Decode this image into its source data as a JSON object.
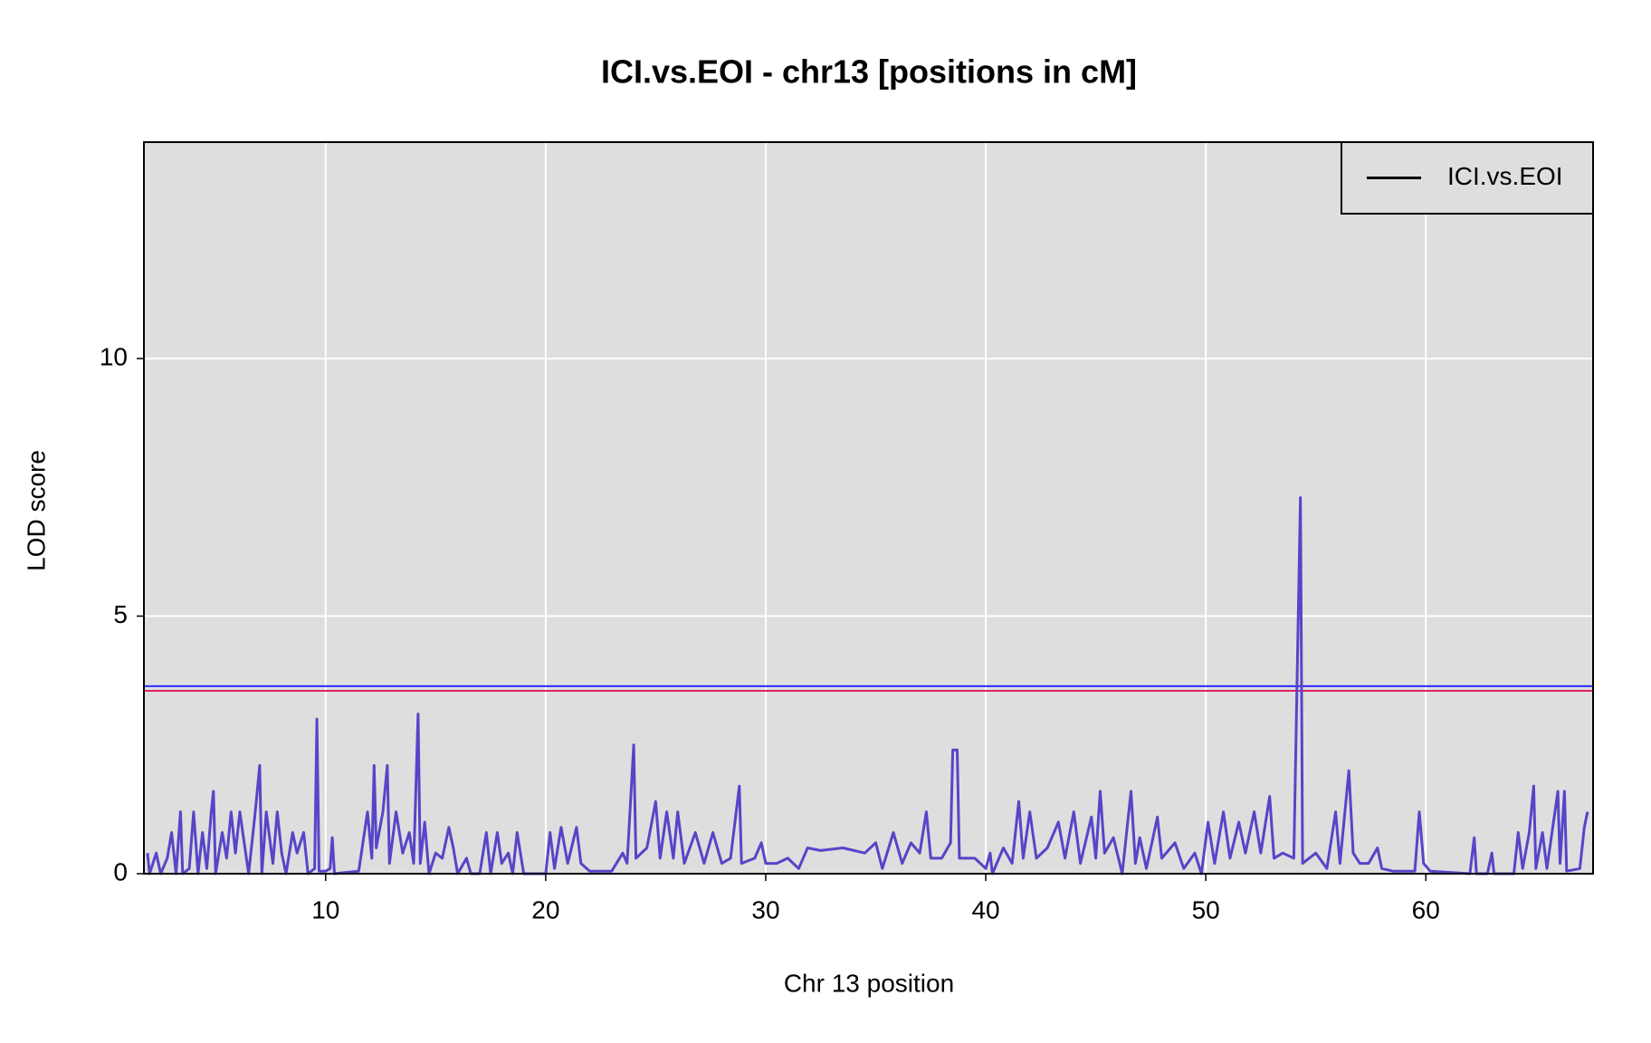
{
  "chart_data": {
    "type": "line",
    "title": "ICI.vs.EOI - chr13 [positions in cM]",
    "x_label": "Chr 13 position",
    "y_label": "LOD score",
    "xlim": [
      1.74,
      67.6
    ],
    "ylim": [
      0,
      14.2
    ],
    "xticks": [
      10,
      20,
      30,
      40,
      50,
      60
    ],
    "yticks": [
      0,
      5,
      10
    ],
    "grid": true,
    "background": "#dedede",
    "legend": "top-right",
    "legend_color": "#000000",
    "thresholds": [
      {
        "value": 3.64,
        "color": "#2b2bff"
      },
      {
        "value": 3.55,
        "color": "#e0206a"
      }
    ],
    "x": [
      1.9,
      2.0,
      2.3,
      2.5,
      2.8,
      3.0,
      3.2,
      3.4,
      3.5,
      3.8,
      4.0,
      4.2,
      4.4,
      4.6,
      4.8,
      4.9,
      5.0,
      5.3,
      5.5,
      5.7,
      5.9,
      6.1,
      6.3,
      6.5,
      6.8,
      7.0,
      7.1,
      7.3,
      7.6,
      7.8,
      8.0,
      8.2,
      8.5,
      8.7,
      9.0,
      9.2,
      9.5,
      9.6,
      9.7,
      10.0,
      10.2,
      10.3,
      10.4,
      11.5,
      11.9,
      12.1,
      12.2,
      12.3,
      12.6,
      12.8,
      12.9,
      13.2,
      13.5,
      13.8,
      14.0,
      14.2,
      14.3,
      14.5,
      14.7,
      15.0,
      15.3,
      15.6,
      15.8,
      16.0,
      16.4,
      16.6,
      17.0,
      17.3,
      17.5,
      17.8,
      18.0,
      18.3,
      18.5,
      18.7,
      19.0,
      20.0,
      20.2,
      20.4,
      20.7,
      21.0,
      21.4,
      21.6,
      22.0,
      23.0,
      23.5,
      23.7,
      24.0,
      24.1,
      24.6,
      25.0,
      25.2,
      25.5,
      25.8,
      26.0,
      26.3,
      26.8,
      27.2,
      27.6,
      28.0,
      28.4,
      28.8,
      28.9,
      29.5,
      29.8,
      30.0,
      30.5,
      31.0,
      31.5,
      31.9,
      32.5,
      33.5,
      34.5,
      35.0,
      35.3,
      35.8,
      36.2,
      36.6,
      37.0,
      37.3,
      37.5,
      38.0,
      38.4,
      38.5,
      38.7,
      38.8,
      39.5,
      40.0,
      40.2,
      40.3,
      40.8,
      41.2,
      41.5,
      41.7,
      42.0,
      42.3,
      42.8,
      43.3,
      43.6,
      44.0,
      44.3,
      44.8,
      45.0,
      45.2,
      45.4,
      45.8,
      46.2,
      46.6,
      46.8,
      47.0,
      47.3,
      47.8,
      48.0,
      48.6,
      49.0,
      49.5,
      49.8,
      50.1,
      50.4,
      50.8,
      51.1,
      51.5,
      51.8,
      52.2,
      52.5,
      52.9,
      53.1,
      53.5,
      54.0,
      54.3,
      54.4,
      55.0,
      55.5,
      55.9,
      56.1,
      56.5,
      56.7,
      57.0,
      57.4,
      57.8,
      58.0,
      58.5,
      59.5,
      59.7,
      59.9,
      60.2,
      62.0,
      62.2,
      62.3,
      62.8,
      63.0,
      63.1,
      64.0,
      64.2,
      64.4,
      64.7,
      64.9,
      65.0,
      65.3,
      65.5,
      66.0,
      66.1,
      66.3,
      66.4,
      67.0,
      67.2,
      67.35
    ],
    "series": [
      {
        "name": "ICI.vs.EOI",
        "color": "#5645c8",
        "values": [
          0.4,
          0,
          0.4,
          0,
          0.3,
          0.8,
          0,
          1.2,
          0,
          0.1,
          1.2,
          0,
          0.8,
          0.1,
          1.2,
          1.6,
          0,
          0.8,
          0.3,
          1.2,
          0.4,
          1.2,
          0.6,
          0,
          1.2,
          2.1,
          0,
          1.2,
          0.2,
          1.2,
          0.4,
          0,
          0.8,
          0.4,
          0.8,
          0,
          0.1,
          3.0,
          0.05,
          0.05,
          0.1,
          0.7,
          0,
          0.05,
          1.2,
          0.3,
          2.1,
          0.5,
          1.2,
          2.1,
          0.2,
          1.2,
          0.4,
          0.8,
          0.2,
          3.1,
          0.2,
          1.0,
          0,
          0.4,
          0.3,
          0.9,
          0.5,
          0,
          0.3,
          0,
          0,
          0.8,
          0,
          0.8,
          0.2,
          0.4,
          0,
          0.8,
          0,
          0,
          0.8,
          0.1,
          0.9,
          0.2,
          0.9,
          0.2,
          0.05,
          0.05,
          0.4,
          0.2,
          2.5,
          0.3,
          0.5,
          1.4,
          0.3,
          1.2,
          0.3,
          1.2,
          0.2,
          0.8,
          0.2,
          0.8,
          0.2,
          0.3,
          1.7,
          0.2,
          0.3,
          0.6,
          0.2,
          0.2,
          0.3,
          0.1,
          0.5,
          0.45,
          0.5,
          0.4,
          0.6,
          0.1,
          0.8,
          0.2,
          0.6,
          0.4,
          1.2,
          0.3,
          0.3,
          0.6,
          2.4,
          2.4,
          0.3,
          0.3,
          0.1,
          0.4,
          0,
          0.5,
          0.2,
          1.4,
          0.3,
          1.2,
          0.3,
          0.5,
          1.0,
          0.3,
          1.2,
          0.2,
          1.1,
          0.3,
          1.6,
          0.4,
          0.7,
          0,
          1.6,
          0.2,
          0.7,
          0.1,
          1.1,
          0.3,
          0.6,
          0.1,
          0.4,
          0,
          1.0,
          0.2,
          1.2,
          0.3,
          1.0,
          0.4,
          1.2,
          0.4,
          1.5,
          0.3,
          0.4,
          0.3,
          7.3,
          0.2,
          0.4,
          0.1,
          1.2,
          0.2,
          2.0,
          0.4,
          0.2,
          0.2,
          0.5,
          0.1,
          0.05,
          0.05,
          1.2,
          0.2,
          0.05,
          0,
          0.7,
          0,
          0,
          0.4,
          0,
          0,
          0.8,
          0.1,
          0.8,
          1.7,
          0.1,
          0.8,
          0.1,
          1.6,
          0.2,
          1.6,
          0.05,
          0.1,
          0.9,
          1.2
        ]
      }
    ]
  }
}
